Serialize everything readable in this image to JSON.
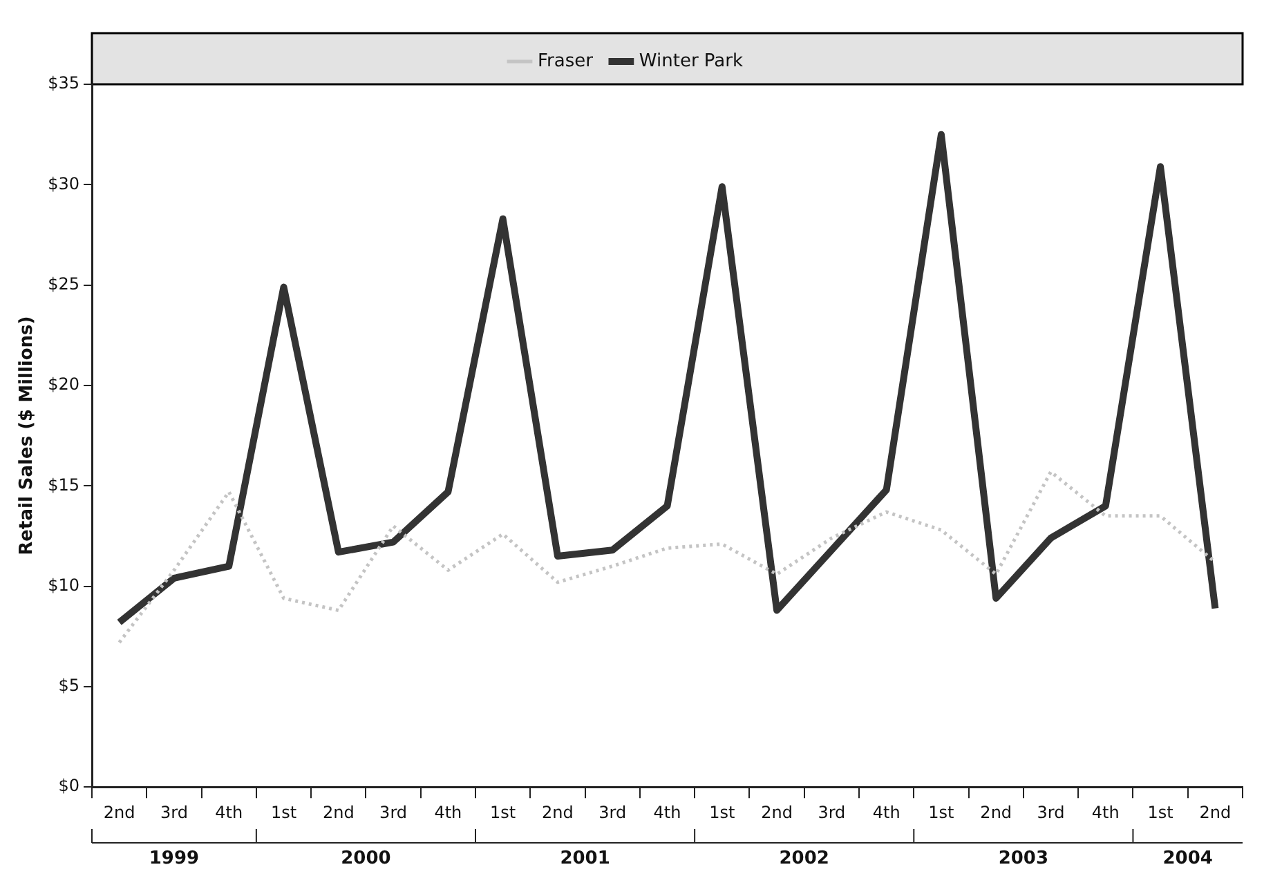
{
  "chart_data": {
    "type": "line",
    "ylabel": "Retail Sales ($ Millions)",
    "categories": [
      "2nd",
      "3rd",
      "4th",
      "1st",
      "2nd",
      "3rd",
      "4th",
      "1st",
      "2nd",
      "3rd",
      "4th",
      "1st",
      "2nd",
      "3rd",
      "4th",
      "1st",
      "2nd",
      "3rd",
      "4th",
      "1st",
      "2nd"
    ],
    "series": [
      {
        "name": "Fraser",
        "color": "#c4c4c4",
        "line_style": "dotted",
        "values": [
          7.2,
          10.8,
          14.7,
          9.4,
          8.8,
          13.0,
          10.8,
          12.6,
          10.2,
          11.0,
          11.9,
          12.1,
          10.6,
          12.4,
          13.7,
          12.8,
          10.6,
          15.7,
          13.5,
          13.5,
          11.2
        ]
      },
      {
        "name": "Winter Park",
        "color": "#333333",
        "line_style": "solid",
        "values": [
          8.2,
          10.4,
          11.0,
          24.9,
          11.7,
          12.2,
          14.7,
          28.3,
          11.5,
          11.8,
          14.0,
          29.9,
          8.8,
          11.8,
          14.8,
          32.5,
          9.4,
          12.4,
          14.0,
          30.9,
          8.9
        ]
      }
    ],
    "ylim": [
      0,
      35
    ],
    "yticks": [
      {
        "value": 0,
        "label": "$0"
      },
      {
        "value": 5,
        "label": "$5"
      },
      {
        "value": 10,
        "label": "$10"
      },
      {
        "value": 15,
        "label": "$15"
      },
      {
        "value": 20,
        "label": "$20"
      },
      {
        "value": 25,
        "label": "$25"
      },
      {
        "value": 30,
        "label": "$30"
      },
      {
        "value": 35,
        "label": "$35"
      }
    ],
    "annotations": [
      "1999",
      "2000",
      "2001",
      "2002",
      "2003",
      "2004"
    ],
    "grid": false,
    "legend": "top",
    "marker": "none"
  }
}
